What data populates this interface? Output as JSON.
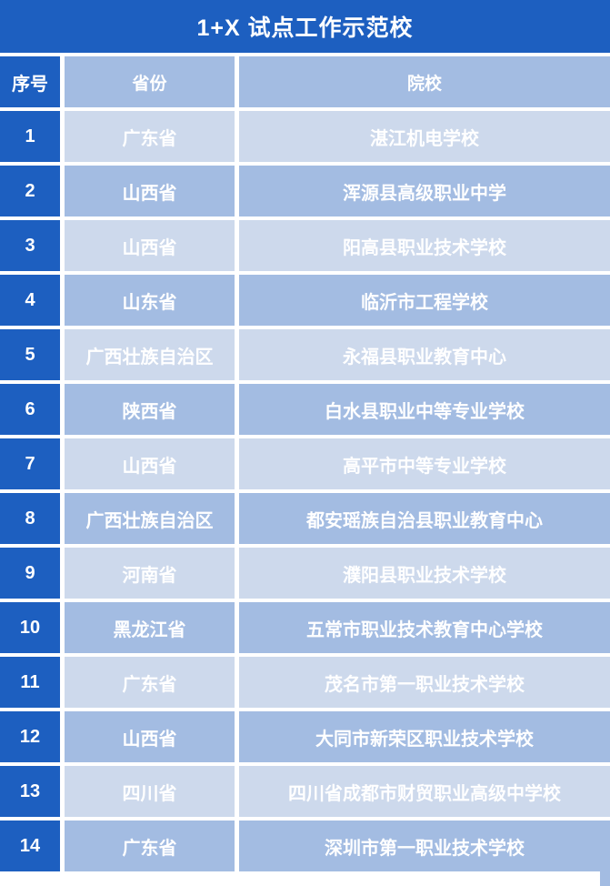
{
  "title": "1+X 试点工作示范校",
  "colors": {
    "primary_blue": "#1d5fc0",
    "header_cell_blue": "#a3bce2",
    "row_light_blue": "#cdd9ec",
    "row_dark_blue": "#a3bce2",
    "text_white": "#ffffff",
    "gutter_white": "#ffffff"
  },
  "table": {
    "columns": [
      "序号",
      "省份",
      "院校"
    ],
    "rows": [
      {
        "no": "1",
        "province": "广东省",
        "school": "湛江机电学校"
      },
      {
        "no": "2",
        "province": "山西省",
        "school": "浑源县高级职业中学"
      },
      {
        "no": "3",
        "province": "山西省",
        "school": "阳高县职业技术学校"
      },
      {
        "no": "4",
        "province": "山东省",
        "school": "临沂市工程学校"
      },
      {
        "no": "5",
        "province": "广西壮族自治区",
        "school": "永福县职业教育中心"
      },
      {
        "no": "6",
        "province": "陕西省",
        "school": "白水县职业中等专业学校"
      },
      {
        "no": "7",
        "province": "山西省",
        "school": "高平市中等专业学校"
      },
      {
        "no": "8",
        "province": "广西壮族自治区",
        "school": "都安瑶族自治县职业教育中心"
      },
      {
        "no": "9",
        "province": "河南省",
        "school": "濮阳县职业技术学校"
      },
      {
        "no": "10",
        "province": "黑龙江省",
        "school": "五常市职业技术教育中心学校"
      },
      {
        "no": "11",
        "province": "广东省",
        "school": "茂名市第一职业技术学校"
      },
      {
        "no": "12",
        "province": "山西省",
        "school": "大同市新荣区职业技术学校"
      },
      {
        "no": "13",
        "province": "四川省",
        "school": "四川省成都市财贸职业高级中学校"
      },
      {
        "no": "14",
        "province": "广东省",
        "school": "深圳市第一职业技术学校"
      }
    ]
  }
}
